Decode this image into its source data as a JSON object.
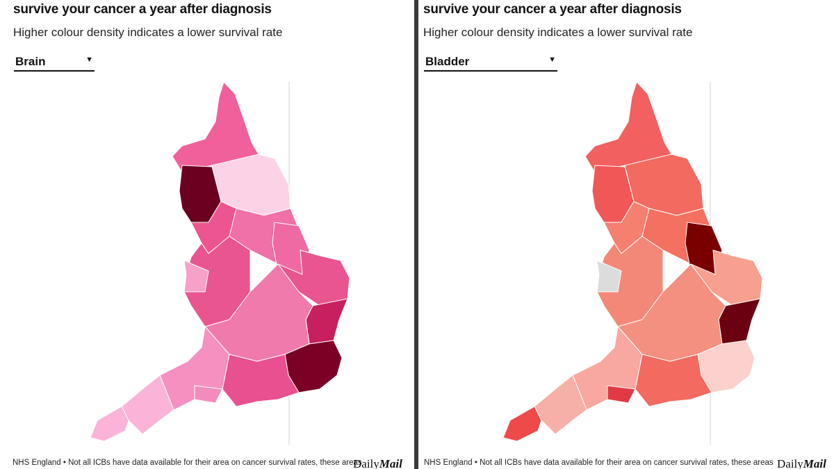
{
  "panels": [
    {
      "title": "survive your cancer a year after diagnosis",
      "subtitle": "Higher colour density indicates a lower survival rate",
      "dropdown": {
        "selected": "Brain",
        "icon": "caret-down-icon"
      },
      "region_colors": [
        "#f0609a",
        "#6b0020",
        "#fcd3e6",
        "#ec5590",
        "#e8558f",
        "#f7a0c8",
        "#f070a8",
        "#ef6aa2",
        "#e8558f",
        "#c8205f",
        "#f07aac",
        "#7a0025",
        "#e8508f",
        "#f590c0",
        "#fbb4d8",
        "#fbb4d8",
        "#f38cbc"
      ],
      "footer": "NHS England • Not all ICBs have data available for their area on cancer survival rates, these areas",
      "logo": {
        "daily": "Daily",
        "mail": "Mail"
      }
    },
    {
      "title": "survive your cancer a year after diagnosis",
      "subtitle": "Higher colour density indicates a lower survival rate",
      "dropdown": {
        "selected": "Bladder",
        "icon": "caret-down-icon"
      },
      "region_colors": [
        "#f26060",
        "#f05858",
        "#f26a60",
        "#f58070",
        "#f48878",
        "#dcdcdc",
        "#f47060",
        "#7a0000",
        "#f8a090",
        "#6a0010",
        "#f49080",
        "#fcd0cc",
        "#f26a60",
        "#f8a8a0",
        "#f6b0a8",
        "#ee4a4a",
        "#e23a44"
      ],
      "footer": "NHS England • Not all ICBs have data available for their area on cancer survival rates, these areas",
      "logo": {
        "daily": "Daily",
        "mail": "Mail"
      }
    }
  ]
}
